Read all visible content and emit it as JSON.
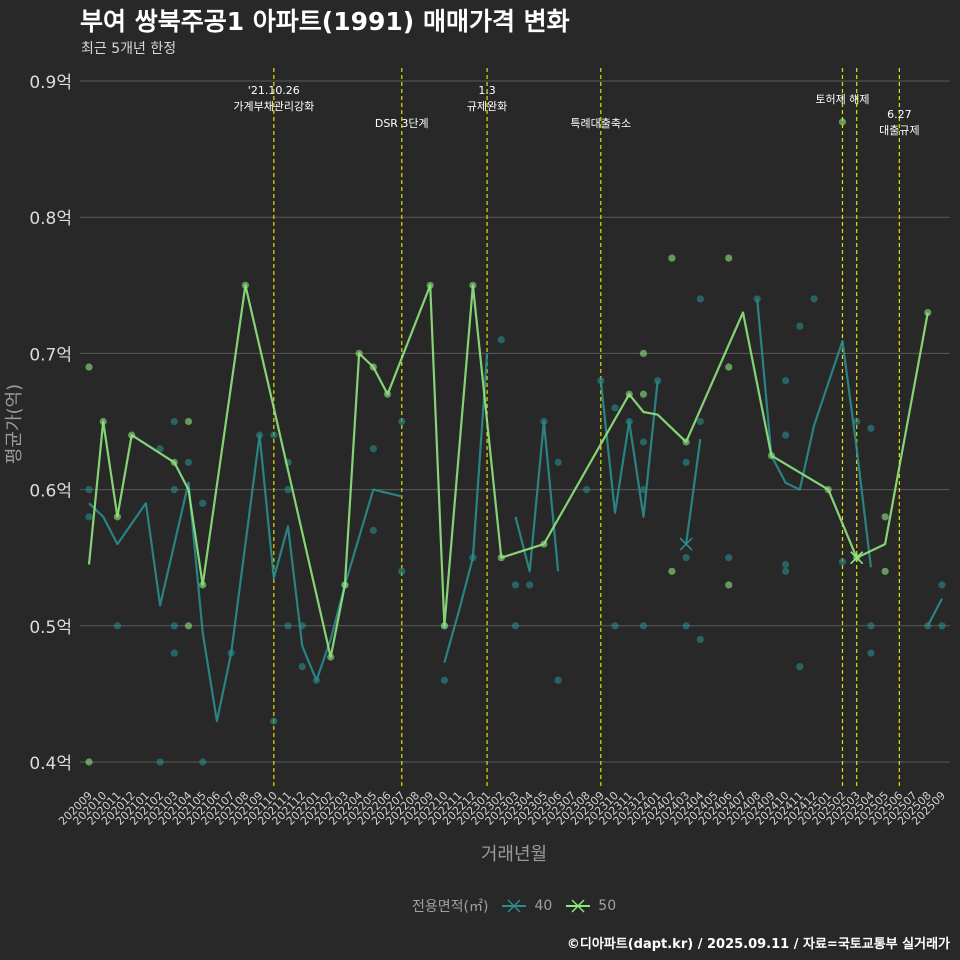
{
  "title": "부여 쌍북주공1 아파트(1991) 매매가격 변화",
  "subtitle": "최근 5개년 한정",
  "caption": "©디아파트(dapt.kr) / 2025.09.11 / 자료=국토교통부 실거래가",
  "legend": {
    "title": "전용면적(㎡)",
    "items": [
      {
        "label": "40",
        "color": "#2a8c8c"
      },
      {
        "label": "50",
        "color": "#90e57e"
      }
    ]
  },
  "colors": {
    "background": "#282828",
    "grid": "#5a5a5a",
    "event_line": "#e3e000",
    "series_40": "#2a8c8c",
    "series_50": "#90e57e"
  },
  "chart_data": {
    "type": "line",
    "title": "부여 쌍북주공1 아파트(1991) 매매가격 변화",
    "subtitle": "최근 5개년 한정",
    "xlabel": "거래년월",
    "ylabel": "평균가(억)",
    "ylim": [
      0.38,
      0.92
    ],
    "yticks": [
      0.4,
      0.5,
      0.6,
      0.7,
      0.8,
      0.9
    ],
    "ytick_labels": [
      "0.4억",
      "0.5억",
      "0.6억",
      "0.7억",
      "0.8억",
      "0.9억"
    ],
    "grid": true,
    "legend_position": "bottom",
    "categories": [
      "202009",
      "202010",
      "202011",
      "202012",
      "202101",
      "202102",
      "202103",
      "202104",
      "202105",
      "202106",
      "202107",
      "202108",
      "202109",
      "202110",
      "202111",
      "202112",
      "202201",
      "202202",
      "202203",
      "202204",
      "202205",
      "202206",
      "202207",
      "202208",
      "202209",
      "202210",
      "202211",
      "202212",
      "202301",
      "202302",
      "202303",
      "202304",
      "202305",
      "202306",
      "202307",
      "202308",
      "202309",
      "202310",
      "202311",
      "202312",
      "202401",
      "202402",
      "202403",
      "202404",
      "202405",
      "202406",
      "202407",
      "202408",
      "202409",
      "202410",
      "202411",
      "202412",
      "202501",
      "202502",
      "202503",
      "202504",
      "202505",
      "202506",
      "202507",
      "202508",
      "202509"
    ],
    "events": [
      {
        "x": "202110",
        "label": "'21.10.26\n가계부채관리강화",
        "row": 1
      },
      {
        "x": "202207",
        "label": "DSR 3단계",
        "row": 2
      },
      {
        "x": "202301",
        "label": "1.3\n규제완화",
        "row": 1
      },
      {
        "x": "202309",
        "label": "특례대출축소",
        "row": 2
      },
      {
        "x": "202502",
        "label": "토허제 해제",
        "row": 0
      },
      {
        "x": "202503",
        "label": "",
        "row": 0
      },
      {
        "x": "202506",
        "label": "6.27\n대출규제",
        "row": 3
      }
    ],
    "series": [
      {
        "name": "40",
        "color": "#2a8c8c",
        "line": [
          [
            "202009",
            0.59
          ],
          [
            "202010",
            0.58
          ],
          [
            "202011",
            0.56
          ],
          [
            "202101",
            0.59
          ],
          [
            "202102",
            0.515
          ],
          [
            "202104",
            0.605
          ],
          [
            "202105",
            0.495
          ],
          [
            "202106",
            0.43
          ],
          [
            "202107",
            0.48
          ],
          [
            "202109",
            0.64
          ],
          [
            "202110",
            0.535
          ],
          [
            "202111",
            0.573
          ],
          [
            "202112",
            0.485
          ],
          [
            "202201",
            0.46
          ],
          [
            "202202",
            0.49
          ],
          [
            "202203",
            0.53
          ],
          [
            "202205",
            0.6
          ],
          [
            "202207",
            0.595
          ],
          null,
          [
            "202210",
            0.473
          ],
          [
            "202211",
            0.51
          ],
          [
            "202212",
            0.55
          ],
          [
            "202301",
            0.7
          ],
          null,
          [
            "202303",
            0.58
          ],
          [
            "202304",
            0.54
          ],
          [
            "202305",
            0.65
          ],
          [
            "202306",
            0.54
          ],
          null,
          [
            "202309",
            0.68
          ],
          [
            "202310",
            0.583
          ],
          [
            "202311",
            0.65
          ],
          [
            "202312",
            0.58
          ],
          [
            "202401",
            0.68
          ],
          null,
          [
            "202403",
            0.56
          ],
          [
            "202404",
            0.637
          ],
          null,
          [
            "202408",
            0.74
          ],
          [
            "202409",
            0.625
          ],
          [
            "202410",
            0.605
          ],
          [
            "202411",
            0.6
          ],
          [
            "202412",
            0.647
          ],
          [
            "202502",
            0.709
          ],
          [
            "202503",
            0.63
          ],
          [
            "202504",
            0.543
          ],
          null,
          [
            "202508",
            0.5
          ],
          [
            "202509",
            0.52
          ]
        ],
        "points": [
          [
            "202009",
            0.6
          ],
          [
            "202009",
            0.58
          ],
          [
            "202011",
            0.5
          ],
          [
            "202102",
            0.4
          ],
          [
            "202102",
            0.63
          ],
          [
            "202103",
            0.65
          ],
          [
            "202103",
            0.6
          ],
          [
            "202103",
            0.5
          ],
          [
            "202103",
            0.48
          ],
          [
            "202104",
            0.62
          ],
          [
            "202105",
            0.59
          ],
          [
            "202105",
            0.4
          ],
          [
            "202107",
            0.48
          ],
          [
            "202109",
            0.64
          ],
          [
            "202110",
            0.64
          ],
          [
            "202110",
            0.43
          ],
          [
            "202111",
            0.62
          ],
          [
            "202111",
            0.6
          ],
          [
            "202111",
            0.5
          ],
          [
            "202112",
            0.5
          ],
          [
            "202112",
            0.47
          ],
          [
            "202201",
            0.46
          ],
          [
            "202203",
            0.53
          ],
          [
            "202205",
            0.63
          ],
          [
            "202205",
            0.57
          ],
          [
            "202207",
            0.65
          ],
          [
            "202207",
            0.54
          ],
          [
            "202210",
            0.5
          ],
          [
            "202210",
            0.46
          ],
          [
            "202212",
            0.55
          ],
          [
            "202302",
            0.71
          ],
          [
            "202303",
            0.5
          ],
          [
            "202303",
            0.53
          ],
          [
            "202304",
            0.53
          ],
          [
            "202305",
            0.65
          ],
          [
            "202306",
            0.62
          ],
          [
            "202306",
            0.46
          ],
          [
            "202308",
            0.6
          ],
          [
            "202309",
            0.68
          ],
          [
            "202310",
            0.5
          ],
          [
            "202310",
            0.66
          ],
          [
            "202311",
            0.65
          ],
          [
            "202312",
            0.635
          ],
          [
            "202312",
            0.6
          ],
          [
            "202312",
            0.5
          ],
          [
            "202401",
            0.68
          ],
          [
            "202403",
            0.62
          ],
          [
            "202403",
            0.55
          ],
          [
            "202403",
            0.5
          ],
          [
            "202404",
            0.74
          ],
          [
            "202404",
            0.65
          ],
          [
            "202404",
            0.49
          ],
          [
            "202406",
            0.55
          ],
          [
            "202408",
            0.74
          ],
          [
            "202410",
            0.68
          ],
          [
            "202410",
            0.64
          ],
          [
            "202410",
            0.545
          ],
          [
            "202410",
            0.54
          ],
          [
            "202411",
            0.72
          ],
          [
            "202411",
            0.47
          ],
          [
            "202412",
            0.74
          ],
          [
            "202502",
            0.547
          ],
          [
            "202503",
            0.65
          ],
          [
            "202504",
            0.645
          ],
          [
            "202504",
            0.5
          ],
          [
            "202504",
            0.48
          ],
          [
            "202508",
            0.5
          ],
          [
            "202509",
            0.53
          ],
          [
            "202509",
            0.5
          ]
        ],
        "crosses": [
          [
            "202403",
            0.56
          ]
        ]
      },
      {
        "name": "50",
        "color": "#90e57e",
        "line": [
          [
            "202009",
            0.545
          ],
          [
            "202010",
            0.65
          ],
          [
            "202011",
            0.58
          ],
          [
            "202012",
            0.64
          ],
          [
            "202103",
            0.62
          ],
          [
            "202104",
            0.6
          ],
          [
            "202105",
            0.53
          ],
          [
            "202108",
            0.75
          ],
          [
            "202110",
            0.66
          ],
          [
            "202202",
            0.477
          ],
          [
            "202203",
            0.53
          ],
          [
            "202204",
            0.7
          ],
          [
            "202205",
            0.69
          ],
          [
            "202206",
            0.67
          ],
          [
            "202209",
            0.75
          ],
          [
            "202210",
            0.5
          ],
          [
            "202212",
            0.75
          ],
          [
            "202302",
            0.55
          ],
          [
            "202305",
            0.56
          ],
          [
            "202311",
            0.67
          ],
          [
            "202312",
            0.657
          ],
          [
            "202401",
            0.655
          ],
          [
            "202403",
            0.635
          ],
          [
            "202407",
            0.73
          ],
          [
            "202409",
            0.625
          ],
          [
            "202501",
            0.6
          ],
          [
            "202503",
            0.55
          ],
          [
            "202505",
            0.56
          ],
          [
            "202508",
            0.73
          ]
        ],
        "points": [
          [
            "202009",
            0.69
          ],
          [
            "202009",
            0.4
          ],
          [
            "202010",
            0.65
          ],
          [
            "202011",
            0.58
          ],
          [
            "202012",
            0.64
          ],
          [
            "202103",
            0.62
          ],
          [
            "202104",
            0.65
          ],
          [
            "202104",
            0.5
          ],
          [
            "202105",
            0.53
          ],
          [
            "202108",
            0.75
          ],
          [
            "202202",
            0.477
          ],
          [
            "202203",
            0.53
          ],
          [
            "202204",
            0.7
          ],
          [
            "202205",
            0.69
          ],
          [
            "202206",
            0.67
          ],
          [
            "202209",
            0.75
          ],
          [
            "202210",
            0.5
          ],
          [
            "202212",
            0.75
          ],
          [
            "202302",
            0.55
          ],
          [
            "202305",
            0.56
          ],
          [
            "202311",
            0.67
          ],
          [
            "202312",
            0.7
          ],
          [
            "202312",
            0.67
          ],
          [
            "202402",
            0.77
          ],
          [
            "202402",
            0.54
          ],
          [
            "202403",
            0.635
          ],
          [
            "202406",
            0.77
          ],
          [
            "202406",
            0.69
          ],
          [
            "202406",
            0.53
          ],
          [
            "202409",
            0.625
          ],
          [
            "202501",
            0.6
          ],
          [
            "202502",
            0.87
          ],
          [
            "202503",
            0.55
          ],
          [
            "202505",
            0.58
          ],
          [
            "202505",
            0.54
          ],
          [
            "202508",
            0.73
          ]
        ],
        "crosses": [
          [
            "202503",
            0.55
          ]
        ]
      }
    ]
  }
}
